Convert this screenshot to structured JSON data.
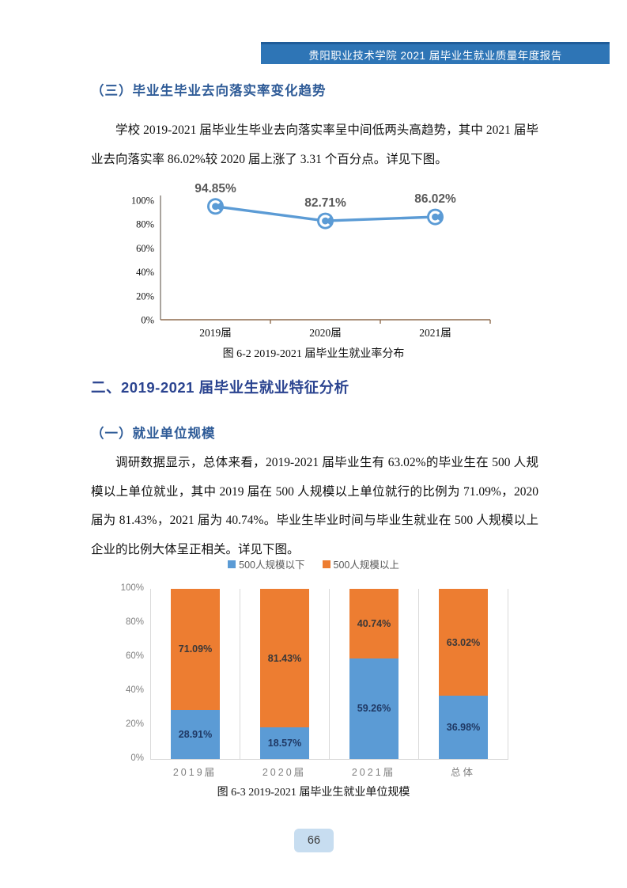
{
  "header": {
    "title": "贵阳职业技术学院 2021 届毕业生就业质量年度报告"
  },
  "section_three": {
    "heading": "（三）毕业生毕业去向落实率变化趋势",
    "paragraph": "学校 2019-2021 届毕业生毕业去向落实率呈中间低两头高趋势，其中 2021 届毕业去向落实率 86.02%较 2020 届上涨了 3.31 个百分点。详见下图。"
  },
  "figure_6_2": {
    "caption": "图 6-2 2019-2021 届毕业生就业率分布"
  },
  "section_two": {
    "heading": "二、2019-2021 届毕业生就业特征分析"
  },
  "section_one": {
    "heading": "（一）就业单位规模",
    "paragraph": "调研数据显示，总体来看，2019-2021 届毕业生有 63.02%的毕业生在 500 人规模以上单位就业，其中 2019 届在 500 人规模以上单位就行的比例为 71.09%，2020 届为 81.43%，2021 届为 40.74%。毕业生毕业时间与毕业生就业在 500 人规模以上企业的比例大体呈正相关。详见下图。"
  },
  "figure_6_3": {
    "caption": "图 6-3 2019-2021 届毕业生就业单位规模"
  },
  "page_number": "66",
  "colors": {
    "chart_blue": "#5B9BD5",
    "chart_orange": "#ED7D31",
    "header_blue": "#2E75B6",
    "heading_navy": "#2B4490",
    "axis_brown": "#8F6B4E",
    "badge_blue": "#C7DDF0"
  },
  "chart_data": [
    {
      "type": "line",
      "title": "",
      "categories": [
        "2019届",
        "2020届",
        "2021届"
      ],
      "values": [
        94.85,
        82.71,
        86.02
      ],
      "point_labels": [
        "94.85%",
        "82.71%",
        "86.02%"
      ],
      "ylim": [
        0,
        100
      ],
      "ytick_labels": [
        "0%",
        "20%",
        "40%",
        "60%",
        "80%",
        "100%"
      ],
      "grid": false,
      "legend_position": "none",
      "line_color": "#5B9BD5"
    },
    {
      "type": "bar",
      "stacked": true,
      "title": "",
      "categories": [
        "2019届",
        "2020届",
        "2021届",
        "总体"
      ],
      "series": [
        {
          "name": "500人规模以下",
          "color": "#5B9BD5",
          "values": [
            28.91,
            18.57,
            59.26,
            36.98
          ],
          "labels": [
            "28.91%",
            "18.57%",
            "59.26%",
            "36.98%"
          ]
        },
        {
          "name": "500人规模以上",
          "color": "#ED7D31",
          "values": [
            71.09,
            81.43,
            40.74,
            63.02
          ],
          "labels": [
            "71.09%",
            "81.43%",
            "40.74%",
            "63.02%"
          ]
        }
      ],
      "ylim": [
        0,
        100
      ],
      "ytick_labels": [
        "0%",
        "20%",
        "40%",
        "60%",
        "80%",
        "100%"
      ],
      "grid": "vertical-separators",
      "legend_position": "top"
    }
  ]
}
